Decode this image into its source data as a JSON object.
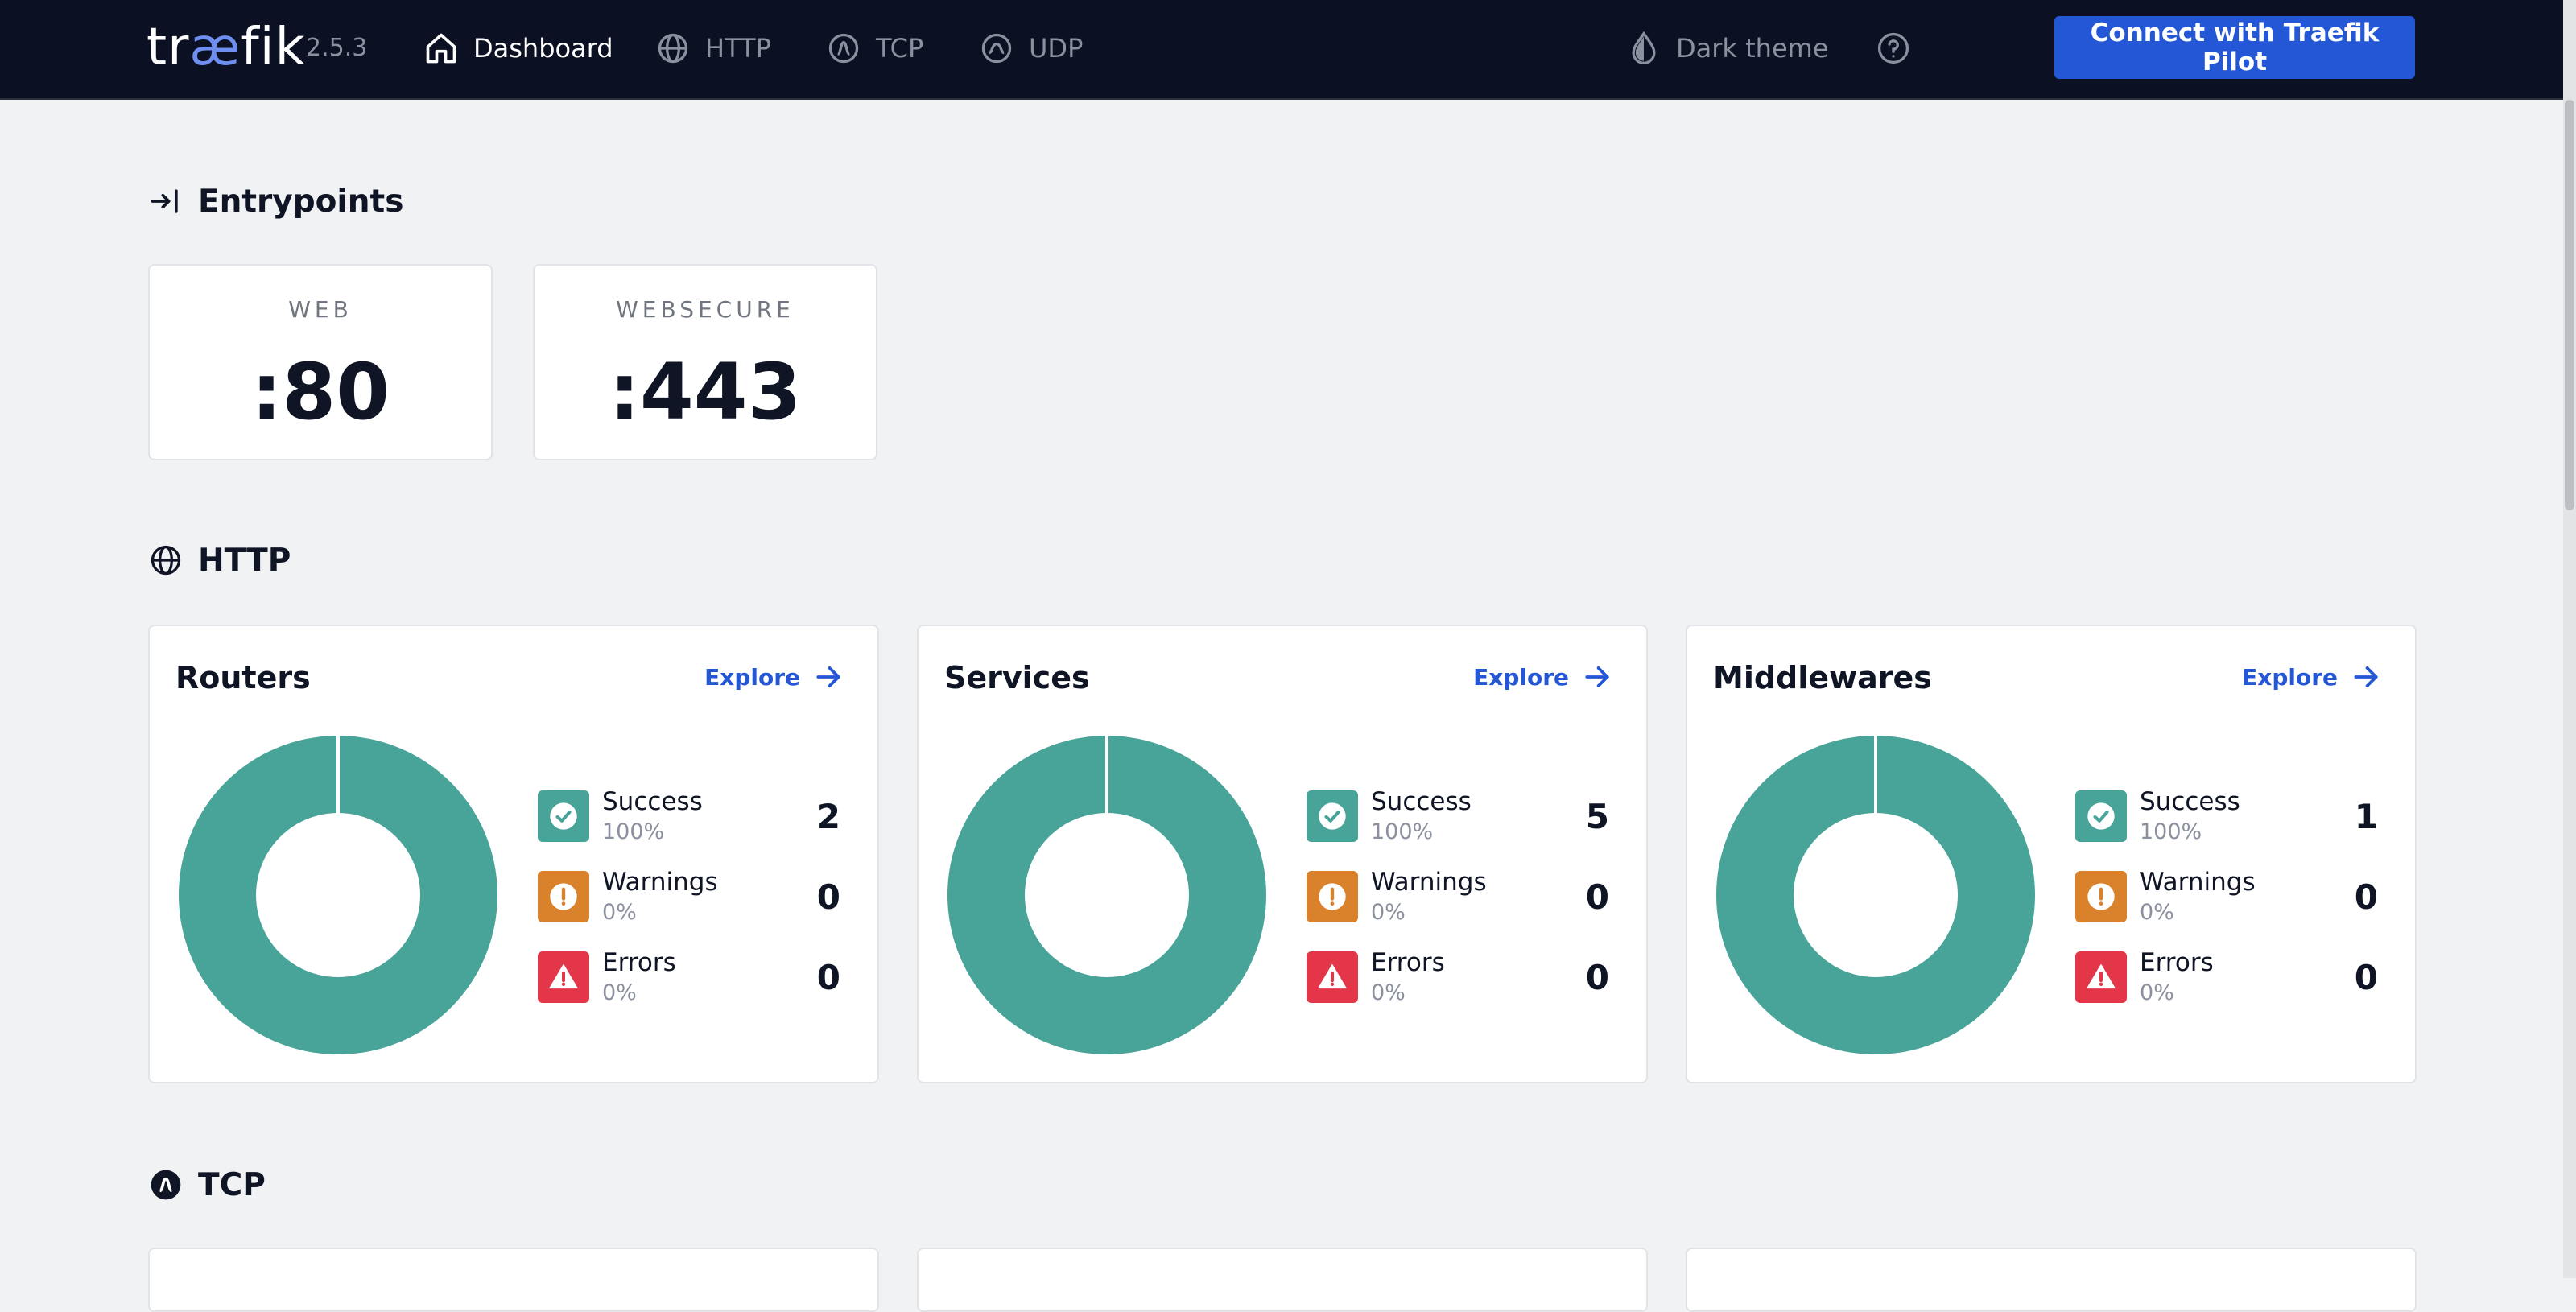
{
  "app": {
    "logo_text_pre": "tr",
    "logo_text_ae": "æ",
    "logo_text_post": "fik",
    "version": "2.5.3"
  },
  "nav": {
    "items": [
      {
        "label": "Dashboard",
        "icon": "home-icon",
        "active": true
      },
      {
        "label": "HTTP",
        "icon": "globe-icon",
        "active": false
      },
      {
        "label": "TCP",
        "icon": "tcp-icon",
        "active": false
      },
      {
        "label": "UDP",
        "icon": "udp-icon",
        "active": false
      }
    ],
    "theme_label": "Dark theme",
    "help_icon": "help-icon",
    "pilot_button": "Connect with Traefik Pilot"
  },
  "entrypoints": {
    "title": "Entrypoints",
    "items": [
      {
        "name": "WEB",
        "port": ":80"
      },
      {
        "name": "WEBSECURE",
        "port": ":443"
      }
    ]
  },
  "http": {
    "title": "HTTP",
    "explore_label": "Explore",
    "legend": {
      "success": "Success",
      "warnings": "Warnings",
      "errors": "Errors"
    },
    "cards": [
      {
        "title": "Routers",
        "success": 2,
        "success_pct": "100%",
        "warnings": 0,
        "warnings_pct": "0%",
        "errors": 0,
        "errors_pct": "0%"
      },
      {
        "title": "Services",
        "success": 5,
        "success_pct": "100%",
        "warnings": 0,
        "warnings_pct": "0%",
        "errors": 0,
        "errors_pct": "0%"
      },
      {
        "title": "Middlewares",
        "success": 1,
        "success_pct": "100%",
        "warnings": 0,
        "warnings_pct": "0%",
        "errors": 0,
        "errors_pct": "0%"
      }
    ]
  },
  "tcp": {
    "title": "TCP"
  },
  "colors": {
    "success": "#48a399",
    "warning": "#d9822b",
    "error": "#e33648",
    "accent": "#2457d6",
    "navbar": "#0b1122"
  }
}
